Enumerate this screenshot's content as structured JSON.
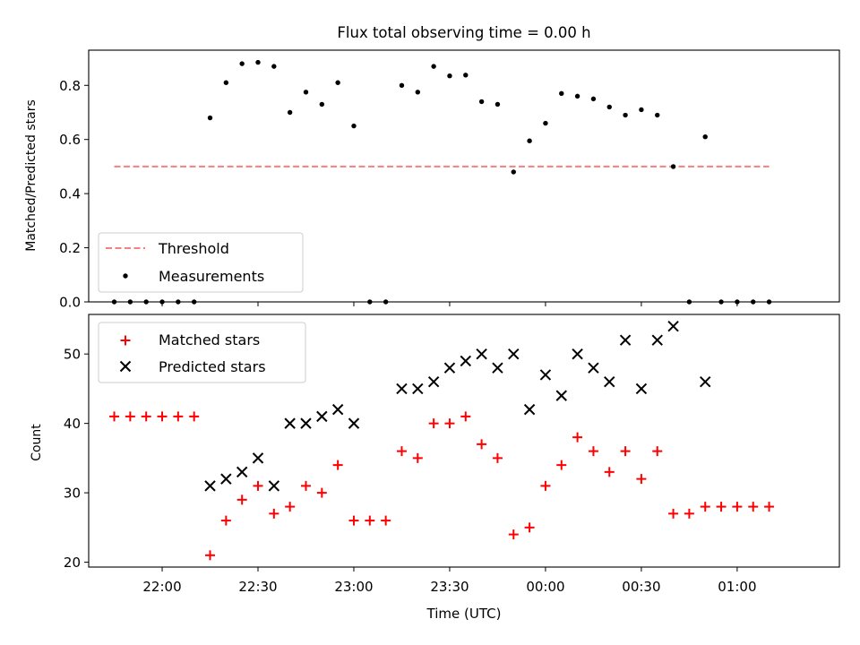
{
  "chart_data": [
    {
      "type": "scatter",
      "title": "Flux total observing time = 0.00 h",
      "xlabel": "",
      "ylabel": "Matched/Predicted stars",
      "ylim": [
        0,
        0.93
      ],
      "yticks": [
        0.0,
        0.2,
        0.4,
        0.6,
        0.8
      ],
      "ytick_labels": [
        "0.0",
        "0.2",
        "0.4",
        "0.6",
        "0.8"
      ],
      "grid": false,
      "legend_position": "lower-left",
      "series": [
        {
          "name": "Threshold",
          "kind": "dashed-line",
          "color": "#f77f7f",
          "points": [
            [
              "21:45",
              0.5
            ],
            [
              "01:10",
              0.5
            ]
          ]
        },
        {
          "name": "Measurements",
          "kind": "dot",
          "color": "#000000",
          "points": [
            [
              "21:45",
              0.0
            ],
            [
              "21:50",
              0.0
            ],
            [
              "21:55",
              0.0
            ],
            [
              "22:00",
              0.0
            ],
            [
              "22:05",
              0.0
            ],
            [
              "22:10",
              0.0
            ],
            [
              "22:15",
              0.68
            ],
            [
              "22:20",
              0.81
            ],
            [
              "22:25",
              0.88
            ],
            [
              "22:30",
              0.885
            ],
            [
              "22:35",
              0.87
            ],
            [
              "22:40",
              0.7
            ],
            [
              "22:45",
              0.775
            ],
            [
              "22:50",
              0.73
            ],
            [
              "22:55",
              0.81
            ],
            [
              "23:00",
              0.65
            ],
            [
              "23:05",
              0.0
            ],
            [
              "23:10",
              0.0
            ],
            [
              "23:15",
              0.8
            ],
            [
              "23:20",
              0.775
            ],
            [
              "23:25",
              0.87
            ],
            [
              "23:30",
              0.835
            ],
            [
              "23:35",
              0.838
            ],
            [
              "23:40",
              0.74
            ],
            [
              "23:45",
              0.73
            ],
            [
              "23:50",
              0.48
            ],
            [
              "23:55",
              0.595
            ],
            [
              "00:00",
              0.66
            ],
            [
              "00:05",
              0.77
            ],
            [
              "00:10",
              0.76
            ],
            [
              "00:15",
              0.75
            ],
            [
              "00:20",
              0.72
            ],
            [
              "00:25",
              0.69
            ],
            [
              "00:30",
              0.71
            ],
            [
              "00:35",
              0.69
            ],
            [
              "00:40",
              0.5
            ],
            [
              "00:45",
              0.0
            ],
            [
              "00:50",
              0.61
            ],
            [
              "00:55",
              0.0
            ],
            [
              "01:00",
              0.0
            ],
            [
              "01:05",
              0.0
            ],
            [
              "01:10",
              0.0
            ]
          ]
        }
      ]
    },
    {
      "type": "scatter",
      "title": "",
      "xlabel": "Time (UTC)",
      "ylabel": "Count",
      "ylim": [
        19.3,
        55.7
      ],
      "yticks": [
        20,
        30,
        40,
        50
      ],
      "ytick_labels": [
        "20",
        "30",
        "40",
        "50"
      ],
      "xticks": [
        "22:00",
        "22:30",
        "23:00",
        "23:30",
        "00:00",
        "00:30",
        "01:00"
      ],
      "xlim": [
        "21:37",
        "01:32"
      ],
      "grid": false,
      "legend_position": "top-left",
      "series": [
        {
          "name": "Matched stars",
          "kind": "plus",
          "color": "#ff0000",
          "points": [
            [
              "21:45",
              41
            ],
            [
              "21:50",
              41
            ],
            [
              "21:55",
              41
            ],
            [
              "22:00",
              41
            ],
            [
              "22:05",
              41
            ],
            [
              "22:10",
              41
            ],
            [
              "22:15",
              21
            ],
            [
              "22:20",
              26
            ],
            [
              "22:25",
              29
            ],
            [
              "22:30",
              31
            ],
            [
              "22:35",
              27
            ],
            [
              "22:40",
              28
            ],
            [
              "22:45",
              31
            ],
            [
              "22:50",
              30
            ],
            [
              "22:55",
              34
            ],
            [
              "23:00",
              26
            ],
            [
              "23:05",
              26
            ],
            [
              "23:10",
              26
            ],
            [
              "23:15",
              36
            ],
            [
              "23:20",
              35
            ],
            [
              "23:25",
              40
            ],
            [
              "23:30",
              40
            ],
            [
              "23:35",
              41
            ],
            [
              "23:40",
              37
            ],
            [
              "23:45",
              35
            ],
            [
              "23:50",
              24
            ],
            [
              "23:55",
              25
            ],
            [
              "00:00",
              31
            ],
            [
              "00:05",
              34
            ],
            [
              "00:10",
              38
            ],
            [
              "00:15",
              36
            ],
            [
              "00:20",
              33
            ],
            [
              "00:25",
              36
            ],
            [
              "00:30",
              32
            ],
            [
              "00:35",
              36
            ],
            [
              "00:40",
              27
            ],
            [
              "00:45",
              27
            ],
            [
              "00:50",
              28
            ],
            [
              "00:55",
              28
            ],
            [
              "01:00",
              28
            ],
            [
              "01:05",
              28
            ],
            [
              "01:10",
              28
            ]
          ]
        },
        {
          "name": "Predicted stars",
          "kind": "x",
          "color": "#000000",
          "points": [
            [
              "22:15",
              31
            ],
            [
              "22:20",
              32
            ],
            [
              "22:25",
              33
            ],
            [
              "22:30",
              35
            ],
            [
              "22:35",
              31
            ],
            [
              "22:40",
              40
            ],
            [
              "22:45",
              40
            ],
            [
              "22:50",
              41
            ],
            [
              "22:55",
              42
            ],
            [
              "23:00",
              40
            ],
            [
              "23:15",
              45
            ],
            [
              "23:20",
              45
            ],
            [
              "23:25",
              46
            ],
            [
              "23:30",
              48
            ],
            [
              "23:35",
              49
            ],
            [
              "23:40",
              50
            ],
            [
              "23:45",
              48
            ],
            [
              "23:50",
              50
            ],
            [
              "23:55",
              42
            ],
            [
              "00:00",
              47
            ],
            [
              "00:05",
              44
            ],
            [
              "00:10",
              50
            ],
            [
              "00:15",
              48
            ],
            [
              "00:20",
              46
            ],
            [
              "00:25",
              52
            ],
            [
              "00:30",
              45
            ],
            [
              "00:35",
              52
            ],
            [
              "00:40",
              54
            ],
            [
              "00:50",
              46
            ]
          ]
        }
      ]
    }
  ]
}
